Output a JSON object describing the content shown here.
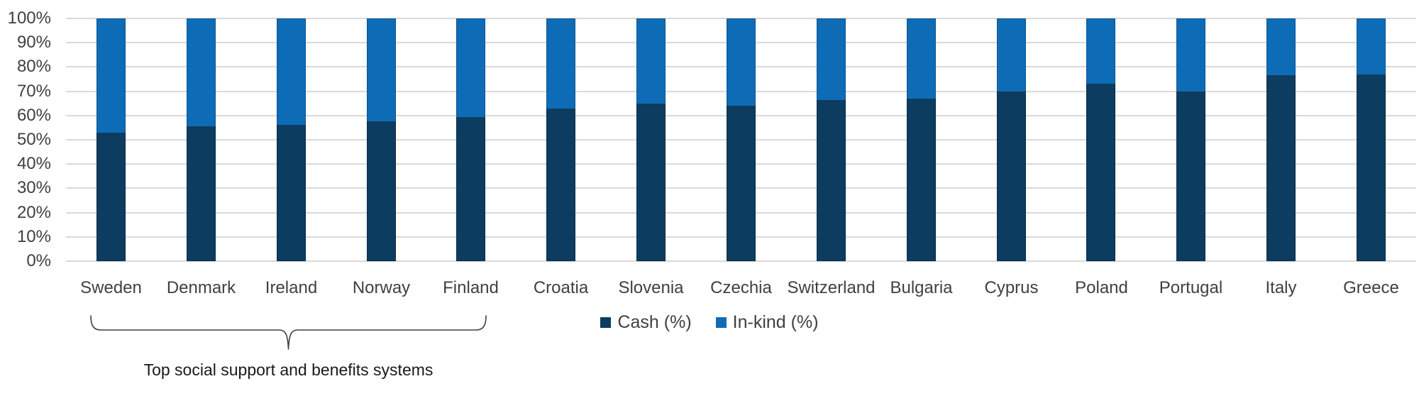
{
  "chart_data": {
    "type": "bar",
    "stacked": true,
    "units": "percent",
    "categories": [
      "Sweden",
      "Denmark",
      "Ireland",
      "Norway",
      "Finland",
      "Croatia",
      "Slovenia",
      "Czechia",
      "Switzerland",
      "Bulgaria",
      "Cyprus",
      "Poland",
      "Portugal",
      "Italy",
      "Greece"
    ],
    "series": [
      {
        "name": "Cash (%)",
        "color": "#0c3c5f",
        "values": [
          53,
          55.5,
          56,
          57.5,
          59.5,
          63,
          65,
          64,
          66.5,
          67,
          70,
          73,
          70,
          76.5,
          77
        ]
      },
      {
        "name": "In-kind (%)",
        "color": "#0e6cb6",
        "values": [
          47,
          44.5,
          44,
          42.5,
          40.5,
          37,
          35,
          36,
          33.5,
          33,
          30,
          27,
          30,
          23.5,
          23
        ]
      }
    ],
    "ylim": [
      0,
      100
    ],
    "y_ticks": [
      "0%",
      "10%",
      "20%",
      "30%",
      "40%",
      "50%",
      "60%",
      "70%",
      "80%",
      "90%",
      "100%"
    ],
    "grid": true,
    "legend_position": "bottom-center",
    "annotation": {
      "text": "Top social support and benefits systems",
      "brace_from_category": "Sweden",
      "brace_to_category": "Finland"
    }
  },
  "legend": {
    "items": [
      {
        "label": "Cash (%)"
      },
      {
        "label": "In-kind (%)"
      }
    ]
  },
  "colors": {
    "cash": "#0c3c5f",
    "in_kind": "#0e6cb6",
    "grid": "#d9d9d9",
    "axis_text": "#404040",
    "annotation_text": "#1a1a1a",
    "brace": "#404040",
    "background": "#ffffff"
  }
}
